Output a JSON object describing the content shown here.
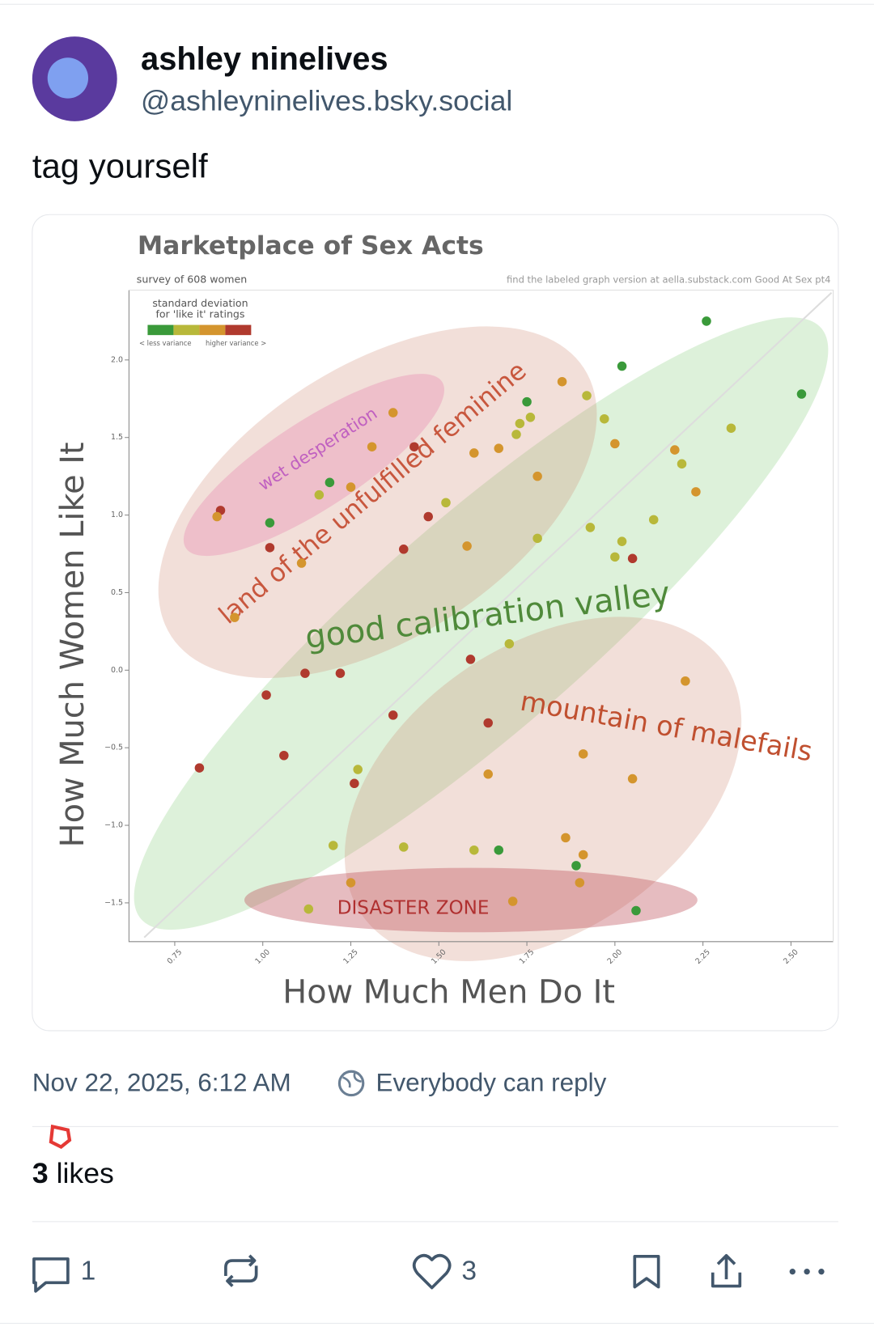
{
  "post": {
    "author": "ashley ninelives",
    "handle": "@ashleyninelives.bsky.social",
    "text": "tag yourself",
    "timestamp": "Nov 22, 2025, 6:12 AM",
    "reply_setting": "Everybody can reply",
    "likes_count": 3,
    "likes_label": "likes",
    "reply_count": 1,
    "like_count": 3
  },
  "chart_data": {
    "type": "scatter",
    "title": "Marketplace of Sex Acts",
    "subtitle": "survey of 608 women",
    "note": "find the labeled graph version at aella.substack.com Good At Sex pt4",
    "x_label": "How Much Men Do It",
    "y_label": "How Much Women Like It",
    "legend_title": [
      "standard deviation",
      "for 'like it' ratings"
    ],
    "legend_low": "< less variance",
    "legend_high": "higher variance >",
    "legend_colors": [
      "#3a9a3a",
      "#b8b83a",
      "#d4952e",
      "#b03a2e"
    ],
    "annotations": [
      "wet desperation",
      "land of the unfulfilled feminine",
      "good calibration valley",
      "mountain of malefails",
      "DISASTER ZONE"
    ],
    "xlim": [
      0.62,
      2.62
    ],
    "ylim": [
      -1.75,
      2.45
    ],
    "xticks": [
      0.75,
      {
        "value": 1,
        "label": "1.00"
      },
      1.25,
      {
        "value": 1.5,
        "label": "1.50"
      },
      1.75,
      {
        "value": 2,
        "label": "2.00"
      },
      2.25,
      {
        "value": 2.5,
        "label": "2.50"
      }
    ],
    "yticks": [
      {
        "value": 2,
        "label": "2.0"
      },
      {
        "value": 1.5,
        "label": "1.5"
      },
      {
        "value": 1,
        "label": "1.0"
      },
      {
        "value": 0.5,
        "label": "0.5"
      },
      {
        "value": 0,
        "label": "0.0"
      },
      {
        "value": -0.5,
        "label": "−0.5"
      },
      {
        "value": -1,
        "label": "−1.0"
      },
      {
        "value": -1.5,
        "label": "−1.5"
      }
    ],
    "x": [
      2.26,
      2.02,
      2.53,
      1.85,
      1.92,
      1.75,
      1.76,
      1.73,
      1.72,
      1.97,
      2.0,
      2.33,
      1.37,
      1.31,
      1.43,
      1.6,
      1.67,
      2.17,
      2.19,
      1.78,
      2.23,
      1.19,
      1.16,
      1.25,
      1.52,
      1.47,
      0.88,
      0.87,
      1.02,
      2.11,
      1.93,
      1.78,
      2.02,
      1.02,
      1.4,
      1.58,
      2.0,
      2.05,
      1.11,
      0.92,
      1.7,
      1.59,
      1.12,
      1.22,
      2.2,
      1.01,
      1.37,
      1.64,
      1.06,
      1.91,
      0.82,
      1.27,
      1.64,
      2.05,
      1.26,
      1.86,
      1.2,
      1.4,
      1.6,
      1.67,
      1.91,
      1.89,
      1.9,
      1.25,
      1.71,
      1.13,
      2.06
    ],
    "y": [
      2.25,
      1.96,
      1.78,
      1.86,
      1.77,
      1.73,
      1.63,
      1.59,
      1.52,
      1.62,
      1.46,
      1.56,
      1.66,
      1.44,
      1.44,
      1.4,
      1.43,
      1.42,
      1.33,
      1.25,
      1.15,
      1.21,
      1.13,
      1.18,
      1.08,
      0.99,
      1.03,
      0.99,
      0.95,
      0.97,
      0.92,
      0.85,
      0.83,
      0.79,
      0.78,
      0.8,
      0.73,
      0.72,
      0.69,
      0.34,
      0.17,
      0.07,
      -0.02,
      -0.02,
      -0.07,
      -0.16,
      -0.29,
      -0.34,
      -0.55,
      -0.54,
      -0.63,
      -0.64,
      -0.67,
      -0.7,
      -0.73,
      -1.08,
      -1.13,
      -1.14,
      -1.16,
      -1.16,
      -1.19,
      -1.26,
      -1.37,
      -1.37,
      -1.49,
      -1.54,
      -1.55
    ],
    "colors": [
      "#3a9a3a",
      "#3a9a3a",
      "#3a9a3a",
      "#d4952e",
      "#b8b83a",
      "#3a9a3a",
      "#b8b83a",
      "#b8b83a",
      "#b8b83a",
      "#b8b83a",
      "#d4952e",
      "#b8b83a",
      "#d4952e",
      "#d4952e",
      "#b03a2e",
      "#d4952e",
      "#d4952e",
      "#d4952e",
      "#b8b83a",
      "#d4952e",
      "#d4952e",
      "#3a9a3a",
      "#b8b83a",
      "#d4952e",
      "#b8b83a",
      "#b03a2e",
      "#b03a2e",
      "#d4952e",
      "#3a9a3a",
      "#b8b83a",
      "#b8b83a",
      "#b8b83a",
      "#b8b83a",
      "#b03a2e",
      "#b03a2e",
      "#d4952e",
      "#b8b83a",
      "#b03a2e",
      "#d4952e",
      "#d4952e",
      "#b8b83a",
      "#b03a2e",
      "#b03a2e",
      "#b03a2e",
      "#d4952e",
      "#b03a2e",
      "#b03a2e",
      "#b03a2e",
      "#b03a2e",
      "#d4952e",
      "#b03a2e",
      "#b8b83a",
      "#d4952e",
      "#d4952e",
      "#b03a2e",
      "#d4952e",
      "#b8b83a",
      "#b8b83a",
      "#b8b83a",
      "#3a9a3a",
      "#d4952e",
      "#3a9a3a",
      "#d4952e",
      "#d4952e",
      "#d4952e",
      "#b8b83a",
      "#3a9a3a"
    ]
  }
}
